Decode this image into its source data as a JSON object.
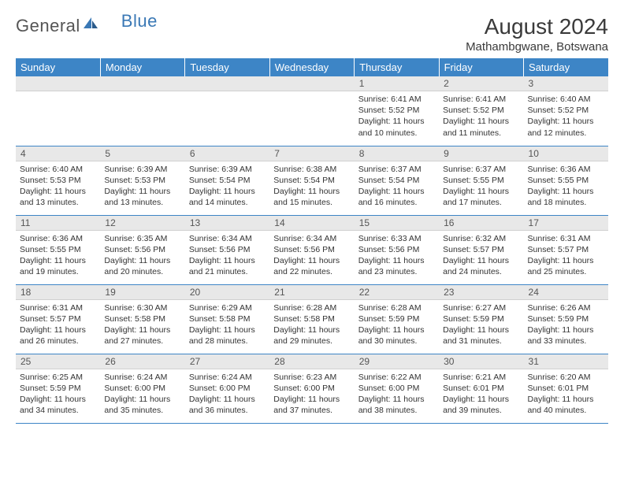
{
  "brand": {
    "part1": "General",
    "part2": "Blue"
  },
  "title": "August 2024",
  "location": "Mathambgwane, Botswana",
  "colors": {
    "header_bg": "#3d85c6",
    "header_fg": "#ffffff",
    "daynum_bg": "#e8e8e8",
    "rule": "#3d85c6",
    "logo_blue": "#3a78b5",
    "logo_gray": "#555555"
  },
  "weekdays": [
    "Sunday",
    "Monday",
    "Tuesday",
    "Wednesday",
    "Thursday",
    "Friday",
    "Saturday"
  ],
  "weeks": [
    [
      null,
      null,
      null,
      null,
      {
        "n": "1",
        "sr": "6:41 AM",
        "ss": "5:52 PM",
        "d1": "11 hours",
        "d2": "and 10 minutes."
      },
      {
        "n": "2",
        "sr": "6:41 AM",
        "ss": "5:52 PM",
        "d1": "11 hours",
        "d2": "and 11 minutes."
      },
      {
        "n": "3",
        "sr": "6:40 AM",
        "ss": "5:52 PM",
        "d1": "11 hours",
        "d2": "and 12 minutes."
      }
    ],
    [
      {
        "n": "4",
        "sr": "6:40 AM",
        "ss": "5:53 PM",
        "d1": "11 hours",
        "d2": "and 13 minutes."
      },
      {
        "n": "5",
        "sr": "6:39 AM",
        "ss": "5:53 PM",
        "d1": "11 hours",
        "d2": "and 13 minutes."
      },
      {
        "n": "6",
        "sr": "6:39 AM",
        "ss": "5:54 PM",
        "d1": "11 hours",
        "d2": "and 14 minutes."
      },
      {
        "n": "7",
        "sr": "6:38 AM",
        "ss": "5:54 PM",
        "d1": "11 hours",
        "d2": "and 15 minutes."
      },
      {
        "n": "8",
        "sr": "6:37 AM",
        "ss": "5:54 PM",
        "d1": "11 hours",
        "d2": "and 16 minutes."
      },
      {
        "n": "9",
        "sr": "6:37 AM",
        "ss": "5:55 PM",
        "d1": "11 hours",
        "d2": "and 17 minutes."
      },
      {
        "n": "10",
        "sr": "6:36 AM",
        "ss": "5:55 PM",
        "d1": "11 hours",
        "d2": "and 18 minutes."
      }
    ],
    [
      {
        "n": "11",
        "sr": "6:36 AM",
        "ss": "5:55 PM",
        "d1": "11 hours",
        "d2": "and 19 minutes."
      },
      {
        "n": "12",
        "sr": "6:35 AM",
        "ss": "5:56 PM",
        "d1": "11 hours",
        "d2": "and 20 minutes."
      },
      {
        "n": "13",
        "sr": "6:34 AM",
        "ss": "5:56 PM",
        "d1": "11 hours",
        "d2": "and 21 minutes."
      },
      {
        "n": "14",
        "sr": "6:34 AM",
        "ss": "5:56 PM",
        "d1": "11 hours",
        "d2": "and 22 minutes."
      },
      {
        "n": "15",
        "sr": "6:33 AM",
        "ss": "5:56 PM",
        "d1": "11 hours",
        "d2": "and 23 minutes."
      },
      {
        "n": "16",
        "sr": "6:32 AM",
        "ss": "5:57 PM",
        "d1": "11 hours",
        "d2": "and 24 minutes."
      },
      {
        "n": "17",
        "sr": "6:31 AM",
        "ss": "5:57 PM",
        "d1": "11 hours",
        "d2": "and 25 minutes."
      }
    ],
    [
      {
        "n": "18",
        "sr": "6:31 AM",
        "ss": "5:57 PM",
        "d1": "11 hours",
        "d2": "and 26 minutes."
      },
      {
        "n": "19",
        "sr": "6:30 AM",
        "ss": "5:58 PM",
        "d1": "11 hours",
        "d2": "and 27 minutes."
      },
      {
        "n": "20",
        "sr": "6:29 AM",
        "ss": "5:58 PM",
        "d1": "11 hours",
        "d2": "and 28 minutes."
      },
      {
        "n": "21",
        "sr": "6:28 AM",
        "ss": "5:58 PM",
        "d1": "11 hours",
        "d2": "and 29 minutes."
      },
      {
        "n": "22",
        "sr": "6:28 AM",
        "ss": "5:59 PM",
        "d1": "11 hours",
        "d2": "and 30 minutes."
      },
      {
        "n": "23",
        "sr": "6:27 AM",
        "ss": "5:59 PM",
        "d1": "11 hours",
        "d2": "and 31 minutes."
      },
      {
        "n": "24",
        "sr": "6:26 AM",
        "ss": "5:59 PM",
        "d1": "11 hours",
        "d2": "and 33 minutes."
      }
    ],
    [
      {
        "n": "25",
        "sr": "6:25 AM",
        "ss": "5:59 PM",
        "d1": "11 hours",
        "d2": "and 34 minutes."
      },
      {
        "n": "26",
        "sr": "6:24 AM",
        "ss": "6:00 PM",
        "d1": "11 hours",
        "d2": "and 35 minutes."
      },
      {
        "n": "27",
        "sr": "6:24 AM",
        "ss": "6:00 PM",
        "d1": "11 hours",
        "d2": "and 36 minutes."
      },
      {
        "n": "28",
        "sr": "6:23 AM",
        "ss": "6:00 PM",
        "d1": "11 hours",
        "d2": "and 37 minutes."
      },
      {
        "n": "29",
        "sr": "6:22 AM",
        "ss": "6:00 PM",
        "d1": "11 hours",
        "d2": "and 38 minutes."
      },
      {
        "n": "30",
        "sr": "6:21 AM",
        "ss": "6:01 PM",
        "d1": "11 hours",
        "d2": "and 39 minutes."
      },
      {
        "n": "31",
        "sr": "6:20 AM",
        "ss": "6:01 PM",
        "d1": "11 hours",
        "d2": "and 40 minutes."
      }
    ]
  ],
  "labels": {
    "sunrise": "Sunrise:",
    "sunset": "Sunset:",
    "daylight": "Daylight:"
  }
}
